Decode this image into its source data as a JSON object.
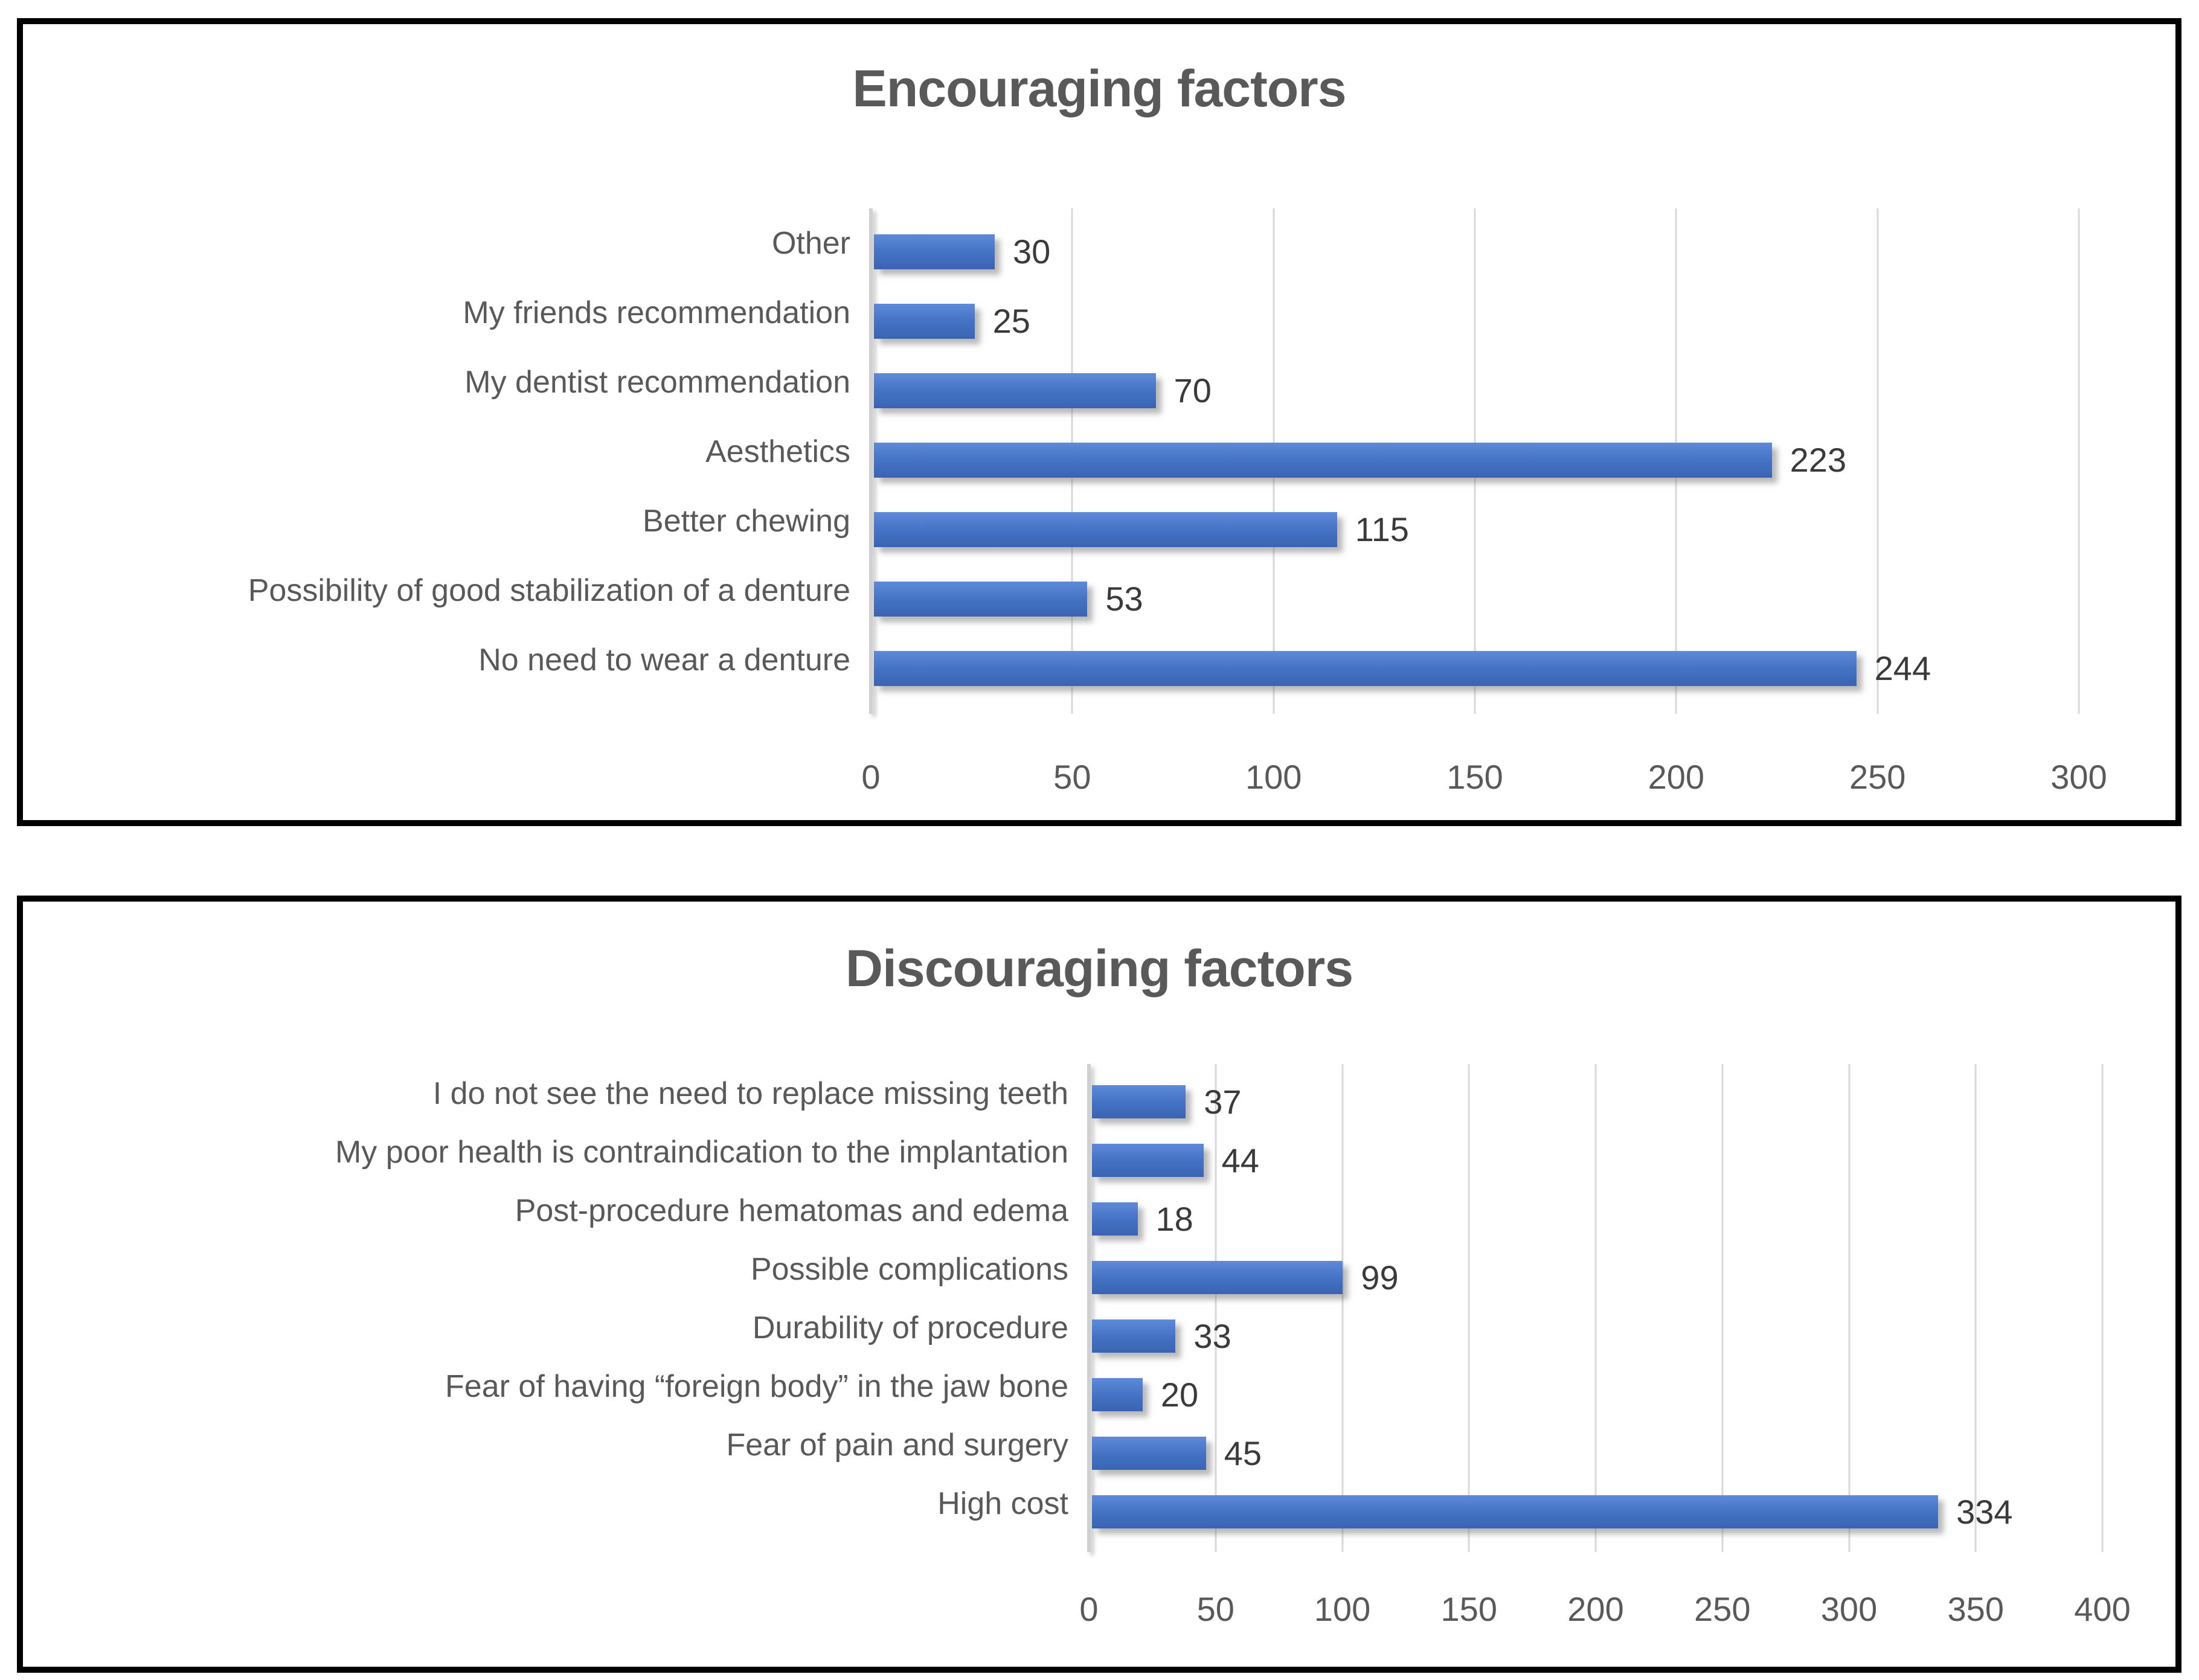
{
  "chart_data": [
    {
      "type": "bar",
      "orientation": "horizontal",
      "title": "Encouraging factors",
      "categories": [
        "Other",
        "My friends recommendation",
        "My dentist recommendation",
        "Aesthetics",
        "Better chewing",
        "Possibility of good stabilization of a denture",
        "No need to wear a denture"
      ],
      "values": [
        30,
        25,
        70,
        223,
        115,
        53,
        244
      ],
      "xlabel": "",
      "ylabel": "",
      "xlim": [
        0,
        300
      ],
      "x_ticks": [
        0,
        50,
        100,
        150,
        200,
        250,
        300
      ],
      "grid": "vertical",
      "legend": "none",
      "data_labels": "outside-end",
      "bar_color": "#4472C4",
      "text_color": "#595959",
      "value_label_color": "#3a3a3a",
      "gridline_color": "#d8d8d8"
    },
    {
      "type": "bar",
      "orientation": "horizontal",
      "title": "Discouraging factors",
      "categories": [
        "I do not see the need to replace missing teeth",
        "My poor health is contraindication to the implantation",
        "Post-procedure hematomas and edema",
        "Possible complications",
        "Durability of procedure",
        "Fear of having “foreign body” in the jaw bone",
        "Fear of pain and surgery",
        "High cost"
      ],
      "values": [
        37,
        44,
        18,
        99,
        33,
        20,
        45,
        334
      ],
      "xlabel": "",
      "ylabel": "",
      "xlim": [
        0,
        400
      ],
      "x_ticks": [
        0,
        50,
        100,
        150,
        200,
        250,
        300,
        350,
        400
      ],
      "grid": "vertical",
      "legend": "none",
      "data_labels": "outside-end",
      "bar_color": "#4472C4",
      "text_color": "#595959",
      "value_label_color": "#3a3a3a",
      "gridline_color": "#d8d8d8"
    }
  ]
}
